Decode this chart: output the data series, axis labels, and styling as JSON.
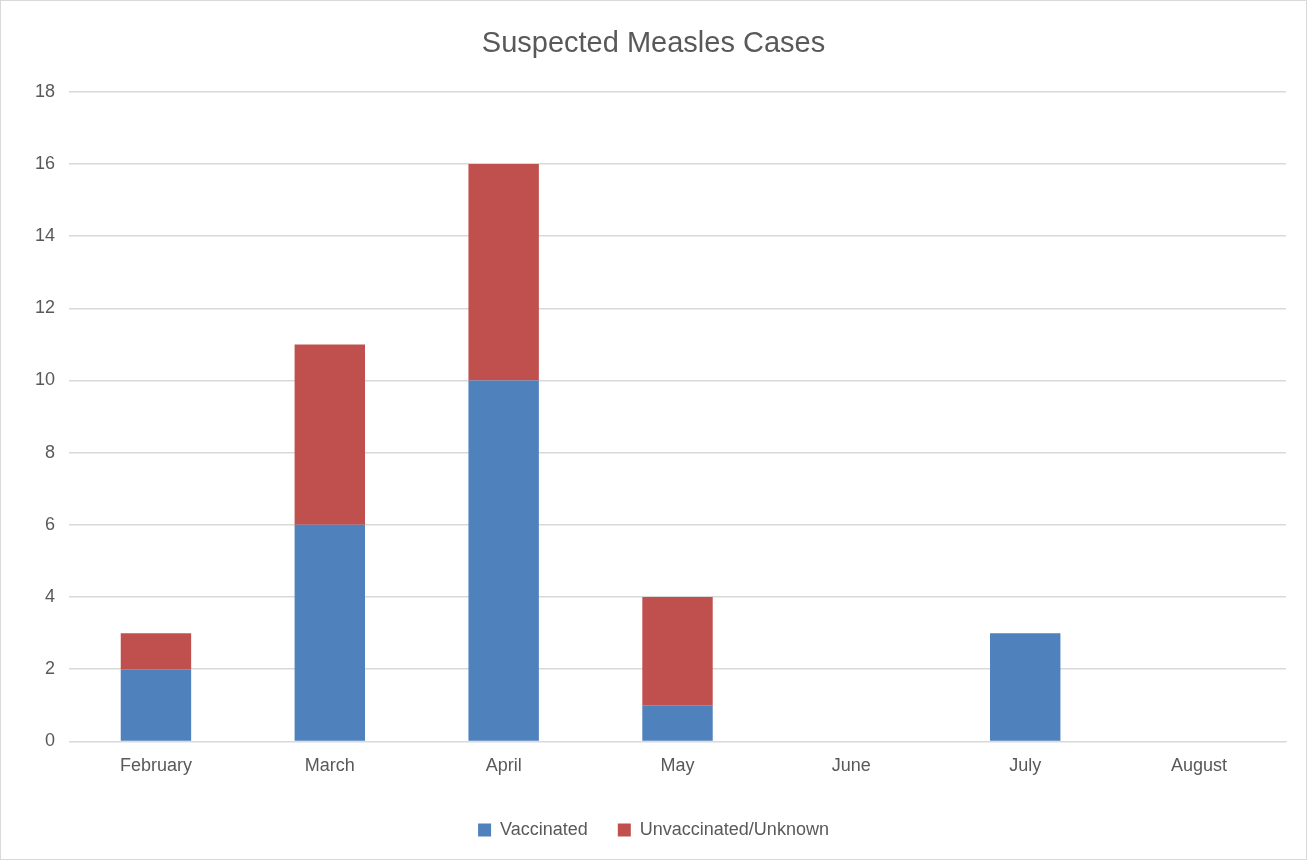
{
  "chart_data": {
    "type": "bar",
    "title": "Suspected Measles Cases",
    "categories": [
      "February",
      "March",
      "April",
      "May",
      "June",
      "July",
      "August"
    ],
    "stacked": true,
    "series": [
      {
        "name": "Vaccinated",
        "color": "#4f81bd",
        "values": [
          2,
          6,
          10,
          1,
          0,
          3,
          0
        ]
      },
      {
        "name": "Unvaccinated/Unknown",
        "color": "#c0504d",
        "values": [
          1,
          5,
          6,
          3,
          0,
          0,
          0
        ]
      }
    ],
    "ylim": [
      0,
      18
    ],
    "yticks": [
      0,
      2,
      4,
      6,
      8,
      10,
      12,
      14,
      16,
      18
    ],
    "grid": "y",
    "legend": "bottom"
  }
}
